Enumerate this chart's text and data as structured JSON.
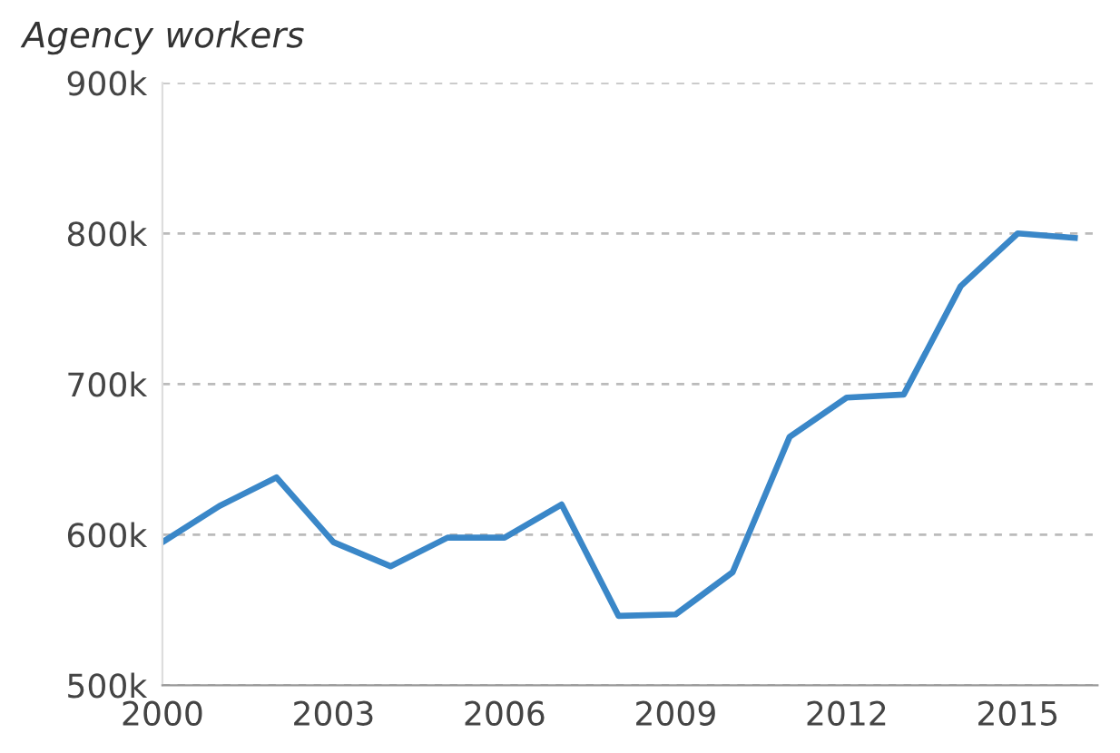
{
  "chart_data": {
    "type": "line",
    "title": "Agency workers",
    "x": [
      2000,
      2001,
      2002,
      2003,
      2004,
      2005,
      2006,
      2007,
      2008,
      2009,
      2010,
      2011,
      2012,
      2013,
      2014,
      2015,
      2016
    ],
    "series": [
      {
        "color": "#3a87c8",
        "values": [
          595,
          619,
          638,
          595,
          579,
          598,
          598,
          620,
          546,
          547,
          575,
          665,
          691,
          693,
          765,
          800,
          797
        ]
      }
    ],
    "xlim": [
      2000,
      2016.4
    ],
    "xticks": [
      2000,
      2003,
      2006,
      2009,
      2012,
      2015
    ],
    "ylim": [
      500,
      900
    ],
    "yticks": [
      {
        "value": 500,
        "label": "500k"
      },
      {
        "value": 600,
        "label": "600k"
      },
      {
        "value": 700,
        "label": "700k"
      },
      {
        "value": 800,
        "label": "800k"
      },
      {
        "value": 900,
        "label": "900k"
      }
    ],
    "grid": "y",
    "marker": "none",
    "line_style": "solid"
  }
}
